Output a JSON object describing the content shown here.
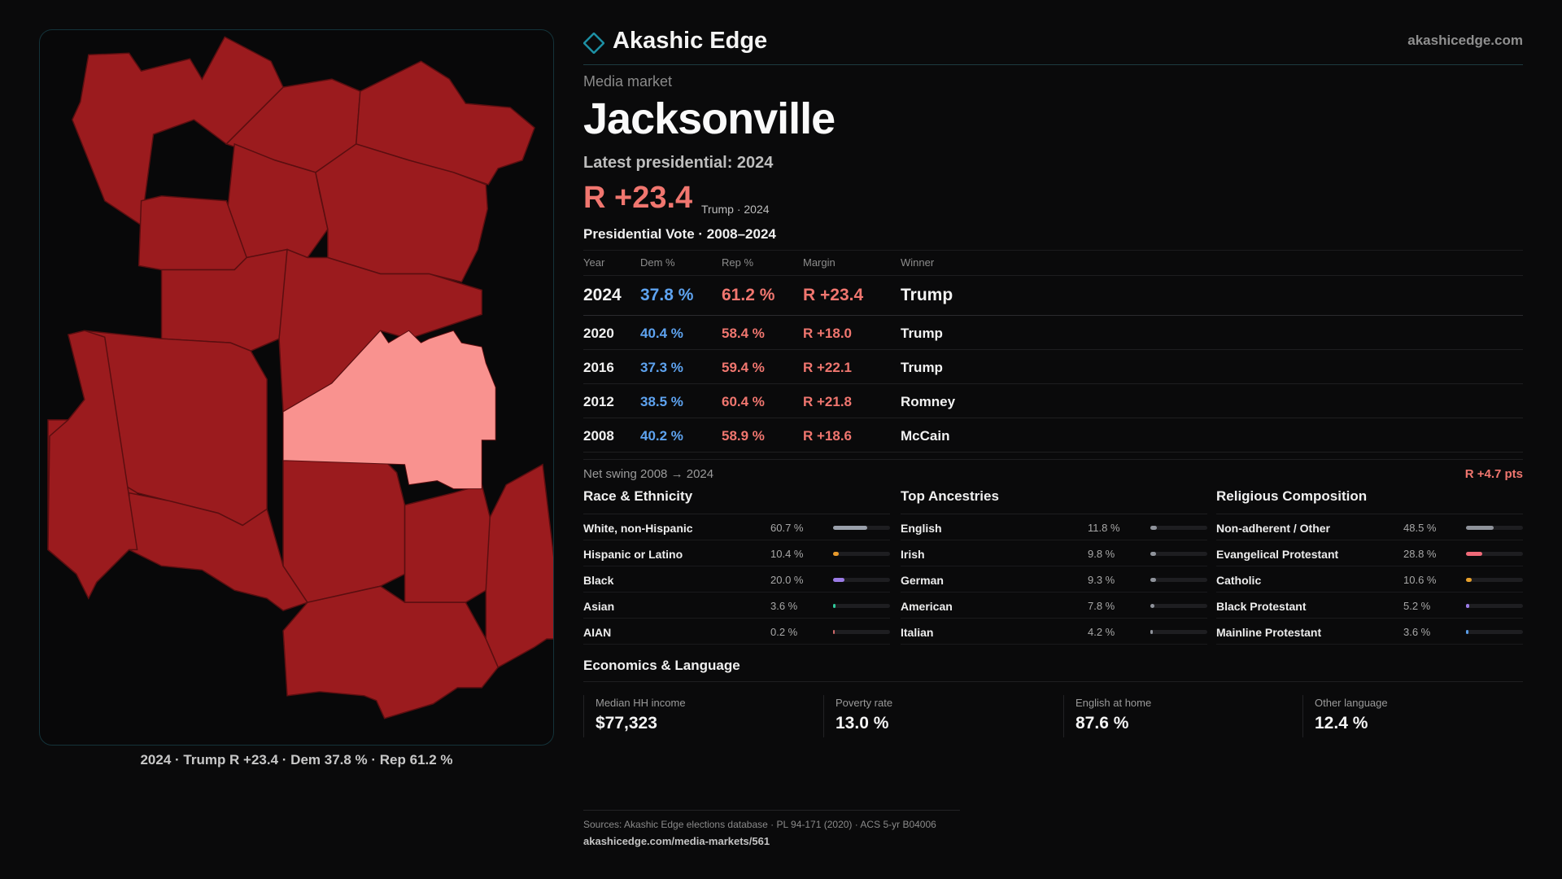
{
  "brand": {
    "name": "Akashic Edge",
    "url": "akashicedge.com",
    "accent": "#1d8fa3"
  },
  "market": {
    "eyebrow": "Media market",
    "name": "Jacksonville",
    "latest_label": "Latest presidential: 2024",
    "headline_margin": "R +23.4",
    "headline_sub": "Trump · 2024"
  },
  "map": {
    "caption": "2024 · Trump R +23.4 · Dem 37.8 % · Rep 61.2 %",
    "colors": {
      "county": "#9b1b1e",
      "highlight": "#f9928f",
      "border": "#5a0e10"
    }
  },
  "vote_history": {
    "title": "Presidential Vote · 2008–2024",
    "headers": {
      "year": "Year",
      "dem": "Dem %",
      "rep": "Rep %",
      "margin": "Margin",
      "winner": "Winner"
    },
    "rows": [
      {
        "year": "2024",
        "dem": "37.8 %",
        "rep": "61.2 %",
        "margin": "R +23.4",
        "winner": "Trump"
      },
      {
        "year": "2020",
        "dem": "40.4 %",
        "rep": "58.4 %",
        "margin": "R +18.0",
        "winner": "Trump"
      },
      {
        "year": "2016",
        "dem": "37.3 %",
        "rep": "59.4 %",
        "margin": "R +22.1",
        "winner": "Trump"
      },
      {
        "year": "2012",
        "dem": "38.5 %",
        "rep": "60.4 %",
        "margin": "R +21.8",
        "winner": "Romney"
      },
      {
        "year": "2008",
        "dem": "40.2 %",
        "rep": "58.9 %",
        "margin": "R +18.6",
        "winner": "McCain"
      }
    ],
    "net_swing_label": "Net swing 2008 → 2024",
    "net_swing_value": "R +4.7 pts"
  },
  "race": {
    "title": "Race & Ethnicity",
    "rows": [
      {
        "name": "White, non-Hispanic",
        "pct": "60.7 %",
        "value": 60.7,
        "color": "#9aa0ab"
      },
      {
        "name": "Hispanic or Latino",
        "pct": "10.4 %",
        "value": 10.4,
        "color": "#e89a2c"
      },
      {
        "name": "Black",
        "pct": "20.0 %",
        "value": 20.0,
        "color": "#9b7be6"
      },
      {
        "name": "Asian",
        "pct": "3.6 %",
        "value": 3.6,
        "color": "#2fc99a"
      },
      {
        "name": "AIAN",
        "pct": "0.2 %",
        "value": 0.2,
        "color": "#d06a6a"
      }
    ]
  },
  "ancestry": {
    "title": "Top Ancestries",
    "rows": [
      {
        "name": "English",
        "pct": "11.8 %",
        "value": 11.8,
        "color": "#8f939b"
      },
      {
        "name": "Irish",
        "pct": "9.8 %",
        "value": 9.8,
        "color": "#8f939b"
      },
      {
        "name": "German",
        "pct": "9.3 %",
        "value": 9.3,
        "color": "#8f939b"
      },
      {
        "name": "American",
        "pct": "7.8 %",
        "value": 7.8,
        "color": "#8f939b"
      },
      {
        "name": "Italian",
        "pct": "4.2 %",
        "value": 4.2,
        "color": "#8f939b"
      }
    ]
  },
  "religion": {
    "title": "Religious Composition",
    "rows": [
      {
        "name": "Non-adherent / Other",
        "pct": "48.5 %",
        "value": 48.5,
        "color": "#8f939b"
      },
      {
        "name": "Evangelical Protestant",
        "pct": "28.8 %",
        "value": 28.8,
        "color": "#f06a78"
      },
      {
        "name": "Catholic",
        "pct": "10.6 %",
        "value": 10.6,
        "color": "#e8a12c"
      },
      {
        "name": "Black Protestant",
        "pct": "5.2 %",
        "value": 5.2,
        "color": "#9b7be6"
      },
      {
        "name": "Mainline Protestant",
        "pct": "3.6 %",
        "value": 3.6,
        "color": "#5a9de8"
      }
    ]
  },
  "economics": {
    "title": "Economics & Language",
    "cards": [
      {
        "label": "Median HH income",
        "value": "$77,323"
      },
      {
        "label": "Poverty rate",
        "value": "13.0 %"
      },
      {
        "label": "English at home",
        "value": "87.6 %"
      },
      {
        "label": "Other language",
        "value": "12.4 %"
      }
    ]
  },
  "footer": {
    "sources": "Sources: Akashic Edge elections database · PL 94-171 (2020) · ACS 5-yr B04006",
    "link": "akashicedge.com/media-markets/561"
  }
}
